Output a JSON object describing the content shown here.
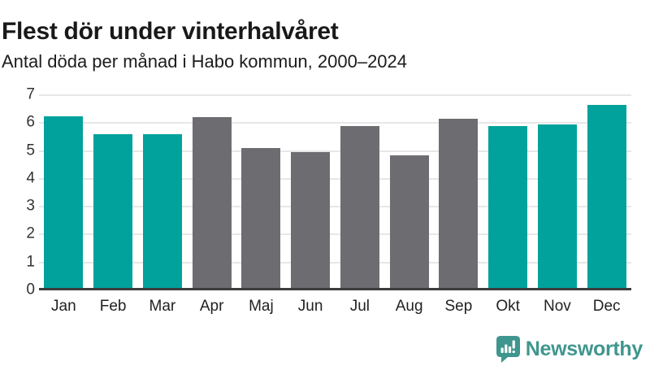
{
  "header": {
    "title": "Flest dör under vinterhalvåret",
    "subtitle": "Antal döda per månad i Habo kommun, 2000–2024"
  },
  "chart_data": {
    "type": "bar",
    "title": "Flest dör under vinterhalvåret",
    "subtitle": "Antal döda per månad i Habo kommun, 2000–2024",
    "categories": [
      "Jan",
      "Feb",
      "Mar",
      "Apr",
      "Maj",
      "Jun",
      "Jul",
      "Aug",
      "Sep",
      "Okt",
      "Nov",
      "Dec"
    ],
    "values": [
      6.25,
      5.6,
      5.6,
      6.2,
      5.1,
      4.95,
      5.9,
      4.85,
      6.15,
      5.9,
      5.95,
      6.65
    ],
    "bar_colors": [
      "highlight",
      "highlight",
      "highlight",
      "muted",
      "muted",
      "muted",
      "muted",
      "muted",
      "muted",
      "highlight",
      "highlight",
      "highlight"
    ],
    "xlabel": "",
    "ylabel": "",
    "ylim": [
      0,
      7
    ],
    "yticks": [
      0,
      1,
      2,
      3,
      4,
      5,
      6,
      7
    ],
    "grid": true,
    "legend": false
  },
  "colors": {
    "highlight": "#00a29b",
    "muted": "#6d6d71",
    "grid": "#e7e7e7",
    "axis_line": "#3c3c3c",
    "title_text": "#191919",
    "logo": "#3f968e"
  },
  "footer": {
    "brand": "Newsworthy",
    "logo_icon": "bar-chart-speech-bubble-icon"
  }
}
